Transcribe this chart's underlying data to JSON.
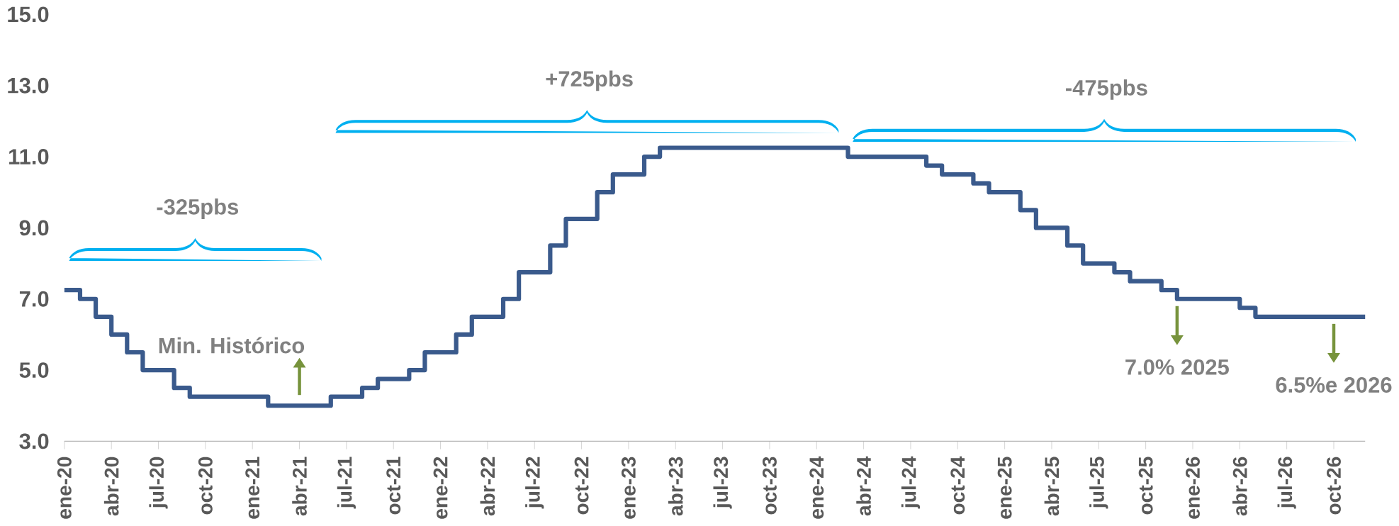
{
  "chart_data": {
    "type": "step",
    "x": [
      "2020-01",
      "2020-02",
      "2020-03",
      "2020-04",
      "2020-05",
      "2020-06",
      "2020-08",
      "2020-09",
      "2021-02",
      "2021-06",
      "2021-08",
      "2021-09",
      "2021-11",
      "2021-12",
      "2022-02",
      "2022-03",
      "2022-05",
      "2022-06",
      "2022-08",
      "2022-09",
      "2022-11",
      "2022-12",
      "2023-02",
      "2023-03",
      "2024-03",
      "2024-08",
      "2024-09",
      "2024-11",
      "2024-12",
      "2025-02",
      "2025-03",
      "2025-05",
      "2025-06",
      "2025-08",
      "2025-09",
      "2025-11",
      "2025-12",
      "2026-04",
      "2026-05",
      "2026-12"
    ],
    "series": [
      {
        "color": "#3a5a8c",
        "values": [
          7.25,
          7.0,
          6.5,
          6.0,
          5.5,
          5.0,
          4.5,
          4.25,
          4.0,
          4.25,
          4.5,
          4.75,
          5.0,
          5.5,
          6.0,
          6.5,
          7.0,
          7.75,
          8.5,
          9.25,
          10.0,
          10.5,
          11.0,
          11.25,
          11.0,
          10.75,
          10.5,
          10.25,
          10.0,
          9.5,
          9.0,
          8.5,
          8.0,
          7.75,
          7.5,
          7.25,
          7.0,
          6.75,
          6.5,
          6.5
        ]
      }
    ],
    "xlim": [
      "2020-01",
      "2026-12"
    ],
    "xticks": [
      {
        "value": "2020-01",
        "label": "ene-20"
      },
      {
        "value": "2020-04",
        "label": "abr-20"
      },
      {
        "value": "2020-07",
        "label": "jul-20"
      },
      {
        "value": "2020-10",
        "label": "oct-20"
      },
      {
        "value": "2021-01",
        "label": "ene-21"
      },
      {
        "value": "2021-04",
        "label": "abr-21"
      },
      {
        "value": "2021-07",
        "label": "jul-21"
      },
      {
        "value": "2021-10",
        "label": "oct-21"
      },
      {
        "value": "2022-01",
        "label": "ene-22"
      },
      {
        "value": "2022-04",
        "label": "abr-22"
      },
      {
        "value": "2022-07",
        "label": "jul-22"
      },
      {
        "value": "2022-10",
        "label": "oct-22"
      },
      {
        "value": "2023-01",
        "label": "ene-23"
      },
      {
        "value": "2023-04",
        "label": "abr-23"
      },
      {
        "value": "2023-07",
        "label": "jul-23"
      },
      {
        "value": "2023-10",
        "label": "oct-23"
      },
      {
        "value": "2024-01",
        "label": "ene-24"
      },
      {
        "value": "2024-04",
        "label": "abr-24"
      },
      {
        "value": "2024-07",
        "label": "jul-24"
      },
      {
        "value": "2024-10",
        "label": "oct-24"
      },
      {
        "value": "2025-01",
        "label": "ene-25"
      },
      {
        "value": "2025-04",
        "label": "abr-25"
      },
      {
        "value": "2025-07",
        "label": "jul-25"
      },
      {
        "value": "2025-10",
        "label": "oct-25"
      },
      {
        "value": "2026-01",
        "label": "ene-26"
      },
      {
        "value": "2026-04",
        "label": "abr-26"
      },
      {
        "value": "2026-07",
        "label": "jul-26"
      },
      {
        "value": "2026-10",
        "label": "oct-26"
      }
    ],
    "ylim": [
      3.0,
      15.0
    ],
    "yticks": [
      {
        "value": 3,
        "label": "3.0"
      },
      {
        "value": 5,
        "label": "5.0"
      },
      {
        "value": 7,
        "label": "7.0"
      },
      {
        "value": 9,
        "label": "9.0"
      },
      {
        "value": 11,
        "label": "11.0"
      },
      {
        "value": 13,
        "label": "13.0"
      },
      {
        "value": 15,
        "label": "15.0"
      }
    ],
    "annotations": [
      "-325pbs",
      "+725pbs",
      "-475pbs",
      {
        "text": "Min. Histórico",
        "x": "2021-04",
        "y": 4.0
      },
      {
        "text": "7.0% 2025",
        "x": "2025-12",
        "y": 7.0
      },
      {
        "text": "6.5%e 2026",
        "x": "2026-10",
        "y": 6.5
      }
    ],
    "marker": "none",
    "line_style": "solid"
  }
}
